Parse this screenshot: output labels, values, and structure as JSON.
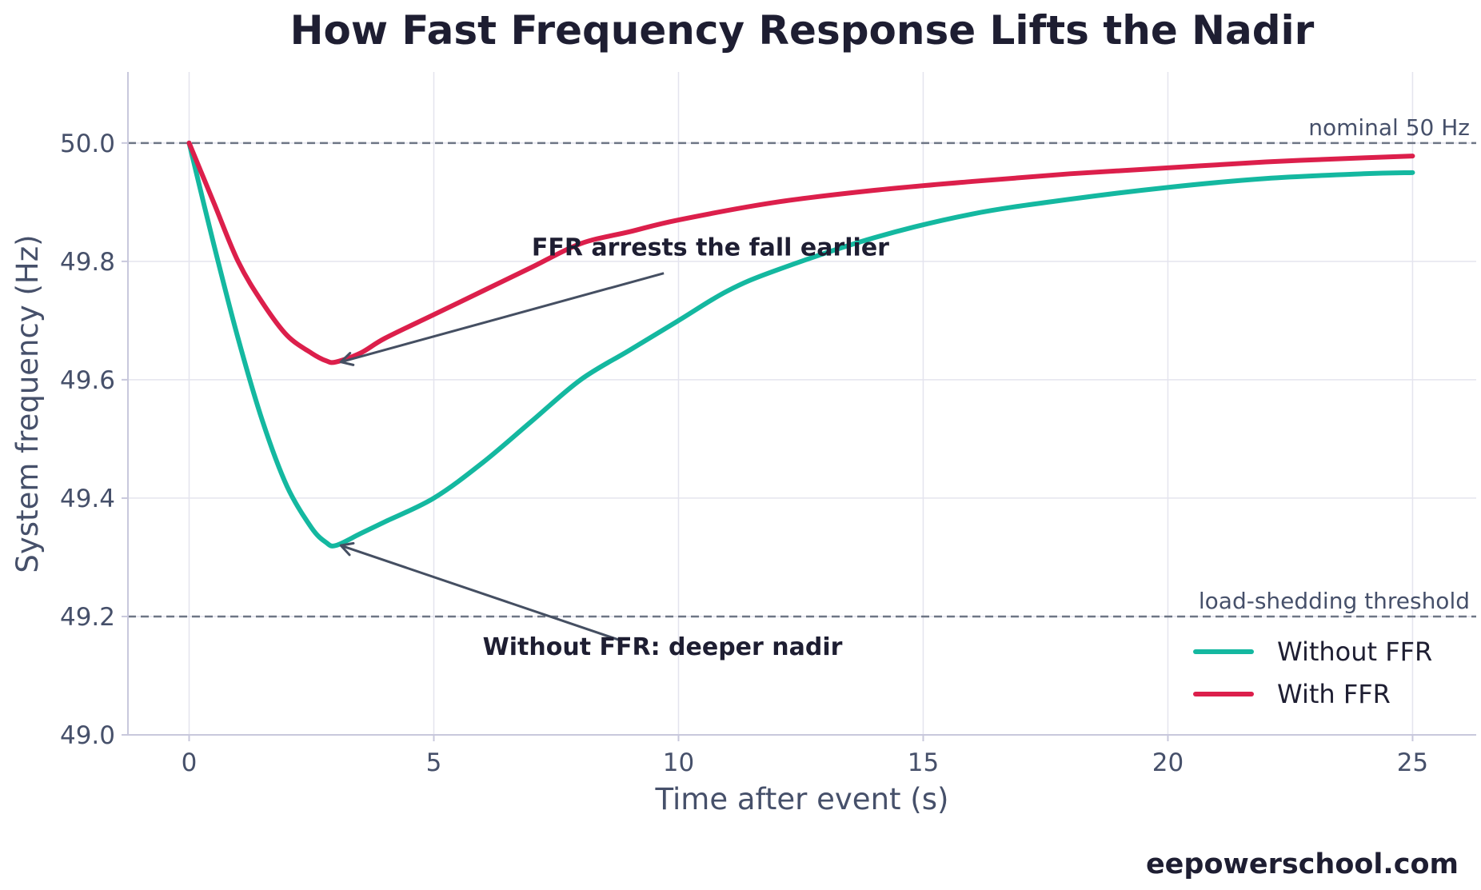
{
  "chart_data": {
    "type": "line",
    "title": "How Fast Frequency Response Lifts the Nadir",
    "xlabel": "Time after event (s)",
    "ylabel": "System frequency (Hz)",
    "xlim": [
      -1.25,
      26.3
    ],
    "ylim": [
      49.0,
      50.12
    ],
    "xticks": [
      0,
      5,
      10,
      15,
      20,
      25
    ],
    "yticks": [
      49.0,
      49.2,
      49.4,
      49.6,
      49.8,
      50.0
    ],
    "xtick_labels": [
      "0",
      "5",
      "10",
      "15",
      "20",
      "25"
    ],
    "ytick_labels": [
      "49.0",
      "49.2",
      "49.4",
      "49.6",
      "49.8",
      "50.0"
    ],
    "grid": true,
    "legend_position": "lower-right",
    "series": [
      {
        "name": "Without FFR",
        "color": "#14b8a0",
        "x": [
          0,
          0.5,
          1,
          1.5,
          2,
          2.5,
          2.8,
          3,
          3.5,
          4,
          5,
          6,
          7,
          8,
          9,
          10,
          11,
          12,
          14,
          16,
          18,
          20,
          22,
          24,
          25
        ],
        "y": [
          50.0,
          49.83,
          49.67,
          49.53,
          49.42,
          49.35,
          49.325,
          49.32,
          49.34,
          49.36,
          49.4,
          49.46,
          49.53,
          49.6,
          49.65,
          49.7,
          49.75,
          49.785,
          49.84,
          49.88,
          49.905,
          49.925,
          49.94,
          49.948,
          49.95
        ]
      },
      {
        "name": "With FFR",
        "color": "#dc1f4b",
        "x": [
          0,
          0.5,
          1,
          1.5,
          2,
          2.5,
          2.8,
          3,
          3.5,
          4,
          5,
          6,
          7,
          8,
          9,
          10,
          12,
          14,
          16,
          18,
          20,
          22,
          24,
          25
        ],
        "y": [
          50.0,
          49.9,
          49.8,
          49.73,
          49.675,
          49.645,
          49.632,
          49.63,
          49.645,
          49.67,
          49.71,
          49.75,
          49.79,
          49.83,
          49.85,
          49.87,
          49.9,
          49.92,
          49.935,
          49.948,
          49.958,
          49.968,
          49.975,
          49.978
        ]
      }
    ],
    "reference_lines": [
      {
        "y": 50.0,
        "label": "nominal 50 Hz"
      },
      {
        "y": 49.2,
        "label": "load-shedding threshold"
      }
    ],
    "annotations": [
      {
        "text": "FFR arrests the fall earlier",
        "text_x": 7.0,
        "text_y": 49.81,
        "arrow_from": [
          9.7,
          49.78
        ],
        "arrow_to": [
          3.1,
          49.63
        ]
      },
      {
        "text": "Without FFR: deeper nadir",
        "text_x": 6.0,
        "text_y": 49.135,
        "arrow_from": [
          8.8,
          49.16
        ],
        "arrow_to": [
          3.1,
          49.32
        ]
      }
    ]
  },
  "credit": "eepowerschool.com"
}
